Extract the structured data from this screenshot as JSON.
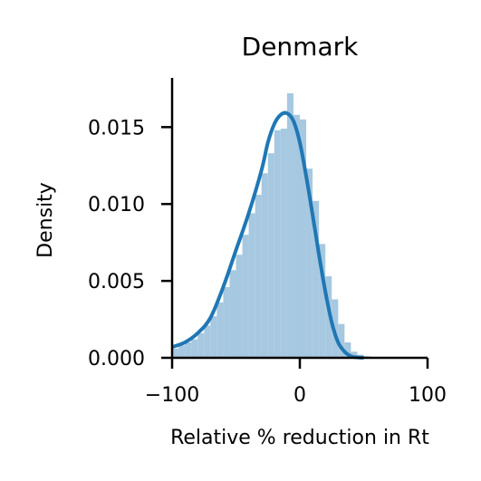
{
  "chart_data": {
    "type": "histogram-kde",
    "title": "Denmark",
    "xlabel": "Relative % reduction in Rt",
    "ylabel": "Density",
    "xlim": [
      -100,
      100
    ],
    "ylim": [
      0,
      0.0182
    ],
    "xticks": [
      -100,
      0,
      100
    ],
    "xtick_labels": [
      "−100",
      "0",
      "100"
    ],
    "yticks": [
      0.0,
      0.005,
      0.01,
      0.015
    ],
    "ytick_labels": [
      "0.000",
      "0.005",
      "0.010",
      "0.015"
    ],
    "grid": false,
    "histogram": {
      "bin_width": 5,
      "bins": [
        {
          "x": -100,
          "y": 0.0006
        },
        {
          "x": -95,
          "y": 0.0008
        },
        {
          "x": -90,
          "y": 0.001
        },
        {
          "x": -85,
          "y": 0.0012
        },
        {
          "x": -80,
          "y": 0.0016
        },
        {
          "x": -75,
          "y": 0.0021
        },
        {
          "x": -70,
          "y": 0.0027
        },
        {
          "x": -65,
          "y": 0.0036
        },
        {
          "x": -60,
          "y": 0.0046
        },
        {
          "x": -55,
          "y": 0.0057
        },
        {
          "x": -50,
          "y": 0.0067
        },
        {
          "x": -45,
          "y": 0.008
        },
        {
          "x": -40,
          "y": 0.0094
        },
        {
          "x": -35,
          "y": 0.0106
        },
        {
          "x": -30,
          "y": 0.012
        },
        {
          "x": -25,
          "y": 0.0133
        },
        {
          "x": -20,
          "y": 0.0148
        },
        {
          "x": -15,
          "y": 0.0149
        },
        {
          "x": -10,
          "y": 0.0172
        },
        {
          "x": -5,
          "y": 0.0158
        },
        {
          "x": 0,
          "y": 0.0155
        },
        {
          "x": 5,
          "y": 0.0123
        },
        {
          "x": 10,
          "y": 0.0102
        },
        {
          "x": 15,
          "y": 0.0074
        },
        {
          "x": 20,
          "y": 0.0053
        },
        {
          "x": 25,
          "y": 0.0038
        },
        {
          "x": 30,
          "y": 0.0022
        },
        {
          "x": 35,
          "y": 0.001
        },
        {
          "x": 40,
          "y": 0.0004
        },
        {
          "x": 45,
          "y": 0.0002
        },
        {
          "x": 50,
          "y": 0.0001
        },
        {
          "x": 55,
          "y": 5e-05
        },
        {
          "x": 60,
          "y": 3e-05
        }
      ]
    },
    "kde": {
      "x": [
        -100,
        -90,
        -80,
        -70,
        -60,
        -50,
        -40,
        -30,
        -25,
        -20,
        -15,
        -10,
        -5,
        0,
        5,
        10,
        15,
        20,
        25,
        30,
        35,
        40,
        45,
        50
      ],
      "y": [
        0.0007,
        0.001,
        0.0016,
        0.0026,
        0.0046,
        0.007,
        0.0094,
        0.0122,
        0.014,
        0.0152,
        0.0158,
        0.0159,
        0.0154,
        0.014,
        0.0118,
        0.0093,
        0.0067,
        0.0043,
        0.0023,
        0.001,
        0.0004,
        0.0001,
        3e-05,
        0.0
      ]
    },
    "colors": {
      "histogram_fill": "#a6c8e0",
      "kde_line": "#1f77b4"
    }
  }
}
